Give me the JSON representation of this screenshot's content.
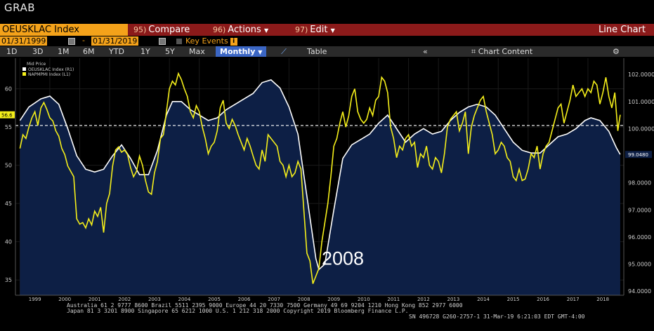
{
  "app": {
    "title": "GRAB"
  },
  "command_bar": {
    "ticker": "OEUSKLAC Index",
    "compare_num": "95)",
    "compare_label": "Compare",
    "actions_num": "96)",
    "actions_label": "Actions",
    "edit_num": "97)",
    "edit_label": "Edit",
    "view_label": "Line Chart"
  },
  "date_range": {
    "start": "01/31/1999",
    "separator": "-",
    "end": "01/31/2019",
    "key_events_label": "Key Events",
    "info_glyph": "i"
  },
  "range_bar": {
    "buttons": [
      "1D",
      "3D",
      "1M",
      "6M",
      "YTD",
      "1Y",
      "5Y",
      "Max"
    ],
    "frequency": "Monthly",
    "table_label": "Table",
    "chart_content_label": "Chart Content"
  },
  "chart_data": {
    "type": "line",
    "legend_title": "Mid Price",
    "legend_position": "top-left",
    "series": [
      {
        "name": "OEUSKLAC Index  (R1)",
        "axis": "right",
        "color": "#ffffff",
        "fill": "#0d1f45",
        "points": [
          [
            1999.0,
            100.3
          ],
          [
            1999.3,
            100.8
          ],
          [
            1999.7,
            101.1
          ],
          [
            2000.0,
            101.2
          ],
          [
            2000.3,
            100.9
          ],
          [
            2000.6,
            100.0
          ],
          [
            2000.9,
            99.0
          ],
          [
            2001.2,
            98.5
          ],
          [
            2001.5,
            98.4
          ],
          [
            2001.8,
            98.5
          ],
          [
            2002.1,
            99.0
          ],
          [
            2002.4,
            99.4
          ],
          [
            2002.7,
            98.9
          ],
          [
            2003.0,
            98.3
          ],
          [
            2003.3,
            98.3
          ],
          [
            2003.6,
            99.2
          ],
          [
            2003.9,
            100.5
          ],
          [
            2004.1,
            101.0
          ],
          [
            2004.4,
            101.0
          ],
          [
            2004.7,
            100.7
          ],
          [
            2005.0,
            100.5
          ],
          [
            2005.3,
            100.3
          ],
          [
            2005.6,
            100.4
          ],
          [
            2005.9,
            100.7
          ],
          [
            2006.2,
            100.9
          ],
          [
            2006.5,
            101.1
          ],
          [
            2006.8,
            101.3
          ],
          [
            2007.1,
            101.7
          ],
          [
            2007.4,
            101.8
          ],
          [
            2007.7,
            101.5
          ],
          [
            2008.0,
            100.8
          ],
          [
            2008.3,
            99.8
          ],
          [
            2008.6,
            97.5
          ],
          [
            2008.9,
            95.2
          ],
          [
            2009.0,
            94.8
          ],
          [
            2009.2,
            95.0
          ],
          [
            2009.5,
            97.0
          ],
          [
            2009.8,
            98.9
          ],
          [
            2010.1,
            99.4
          ],
          [
            2010.4,
            99.6
          ],
          [
            2010.7,
            99.8
          ],
          [
            2011.0,
            100.2
          ],
          [
            2011.3,
            100.5
          ],
          [
            2011.6,
            100.0
          ],
          [
            2011.9,
            99.5
          ],
          [
            2012.2,
            99.8
          ],
          [
            2012.5,
            100.0
          ],
          [
            2012.8,
            99.8
          ],
          [
            2013.1,
            99.9
          ],
          [
            2013.4,
            100.3
          ],
          [
            2013.7,
            100.6
          ],
          [
            2014.0,
            100.8
          ],
          [
            2014.3,
            100.9
          ],
          [
            2014.6,
            100.8
          ],
          [
            2014.9,
            100.5
          ],
          [
            2015.2,
            100.0
          ],
          [
            2015.5,
            99.5
          ],
          [
            2015.8,
            99.2
          ],
          [
            2016.1,
            99.1
          ],
          [
            2016.4,
            99.1
          ],
          [
            2016.7,
            99.4
          ],
          [
            2017.0,
            99.7
          ],
          [
            2017.3,
            99.8
          ],
          [
            2017.6,
            100.0
          ],
          [
            2017.9,
            100.3
          ],
          [
            2018.1,
            100.4
          ],
          [
            2018.4,
            100.3
          ],
          [
            2018.7,
            99.9
          ],
          [
            2018.95,
            99.3
          ],
          [
            2019.08,
            99.048
          ]
        ]
      },
      {
        "name": "NAPMPMI Index  (L1)",
        "axis": "left",
        "color": "#f5ef1a",
        "points": [
          [
            1999.0,
            52.2
          ],
          [
            1999.1,
            54.0
          ],
          [
            1999.2,
            53.5
          ],
          [
            1999.3,
            55.0
          ],
          [
            1999.4,
            56.2
          ],
          [
            1999.5,
            57.0
          ],
          [
            1999.6,
            55.2
          ],
          [
            1999.7,
            57.5
          ],
          [
            1999.8,
            58.2
          ],
          [
            1999.9,
            57.3
          ],
          [
            2000.0,
            56.2
          ],
          [
            2000.1,
            55.8
          ],
          [
            2000.2,
            54.5
          ],
          [
            2000.3,
            53.8
          ],
          [
            2000.4,
            52.2
          ],
          [
            2000.5,
            51.4
          ],
          [
            2000.6,
            49.9
          ],
          [
            2000.7,
            49.2
          ],
          [
            2000.8,
            48.5
          ],
          [
            2000.9,
            43.0
          ],
          [
            2001.0,
            42.3
          ],
          [
            2001.1,
            42.5
          ],
          [
            2001.2,
            41.8
          ],
          [
            2001.3,
            43.0
          ],
          [
            2001.4,
            42.2
          ],
          [
            2001.5,
            44.0
          ],
          [
            2001.6,
            43.3
          ],
          [
            2001.7,
            44.5
          ],
          [
            2001.8,
            41.2
          ],
          [
            2001.9,
            45.0
          ],
          [
            2002.0,
            46.3
          ],
          [
            2002.1,
            49.9
          ],
          [
            2002.2,
            52.0
          ],
          [
            2002.3,
            52.4
          ],
          [
            2002.4,
            51.7
          ],
          [
            2002.5,
            52.0
          ],
          [
            2002.6,
            51.4
          ],
          [
            2002.7,
            49.7
          ],
          [
            2002.8,
            48.5
          ],
          [
            2002.9,
            49.2
          ],
          [
            2003.0,
            51.2
          ],
          [
            2003.1,
            50.0
          ],
          [
            2003.2,
            48.0
          ],
          [
            2003.3,
            46.5
          ],
          [
            2003.4,
            46.2
          ],
          [
            2003.5,
            49.0
          ],
          [
            2003.6,
            50.5
          ],
          [
            2003.7,
            53.5
          ],
          [
            2003.8,
            54.0
          ],
          [
            2003.9,
            57.0
          ],
          [
            2004.0,
            60.0
          ],
          [
            2004.1,
            61.0
          ],
          [
            2004.2,
            60.5
          ],
          [
            2004.3,
            62.0
          ],
          [
            2004.4,
            61.2
          ],
          [
            2004.5,
            60.0
          ],
          [
            2004.6,
            59.0
          ],
          [
            2004.7,
            57.0
          ],
          [
            2004.8,
            56.2
          ],
          [
            2004.9,
            57.8
          ],
          [
            2005.0,
            57.0
          ],
          [
            2005.1,
            55.0
          ],
          [
            2005.2,
            53.5
          ],
          [
            2005.3,
            51.5
          ],
          [
            2005.4,
            52.5
          ],
          [
            2005.5,
            53.0
          ],
          [
            2005.6,
            54.5
          ],
          [
            2005.7,
            57.5
          ],
          [
            2005.8,
            58.5
          ],
          [
            2005.9,
            55.5
          ],
          [
            2006.0,
            54.8
          ],
          [
            2006.1,
            56.0
          ],
          [
            2006.2,
            55.2
          ],
          [
            2006.3,
            54.0
          ],
          [
            2006.4,
            53.0
          ],
          [
            2006.5,
            52.0
          ],
          [
            2006.6,
            53.5
          ],
          [
            2006.7,
            52.5
          ],
          [
            2006.8,
            51.2
          ],
          [
            2006.9,
            50.0
          ],
          [
            2007.0,
            49.5
          ],
          [
            2007.1,
            52.0
          ],
          [
            2007.2,
            50.5
          ],
          [
            2007.3,
            54.0
          ],
          [
            2007.4,
            53.5
          ],
          [
            2007.5,
            53.0
          ],
          [
            2007.6,
            52.5
          ],
          [
            2007.7,
            50.5
          ],
          [
            2007.8,
            50.0
          ],
          [
            2007.9,
            48.5
          ],
          [
            2008.0,
            50.0
          ],
          [
            2008.1,
            48.5
          ],
          [
            2008.2,
            49.0
          ],
          [
            2008.3,
            50.5
          ],
          [
            2008.4,
            49.5
          ],
          [
            2008.5,
            44.0
          ],
          [
            2008.6,
            38.5
          ],
          [
            2008.7,
            37.5
          ],
          [
            2008.8,
            34.5
          ],
          [
            2008.9,
            35.5
          ],
          [
            2009.0,
            36.5
          ],
          [
            2009.1,
            40.0
          ],
          [
            2009.2,
            42.5
          ],
          [
            2009.3,
            45.0
          ],
          [
            2009.4,
            48.5
          ],
          [
            2009.5,
            52.5
          ],
          [
            2009.6,
            53.5
          ],
          [
            2009.7,
            55.5
          ],
          [
            2009.8,
            57.0
          ],
          [
            2009.9,
            55.0
          ],
          [
            2010.0,
            56.5
          ],
          [
            2010.1,
            59.0
          ],
          [
            2010.2,
            60.0
          ],
          [
            2010.3,
            57.0
          ],
          [
            2010.4,
            56.0
          ],
          [
            2010.5,
            55.5
          ],
          [
            2010.6,
            56.0
          ],
          [
            2010.7,
            57.5
          ],
          [
            2010.8,
            56.5
          ],
          [
            2010.9,
            58.5
          ],
          [
            2011.0,
            59.0
          ],
          [
            2011.1,
            61.5
          ],
          [
            2011.2,
            61.0
          ],
          [
            2011.3,
            59.5
          ],
          [
            2011.4,
            55.0
          ],
          [
            2011.5,
            53.5
          ],
          [
            2011.6,
            51.0
          ],
          [
            2011.7,
            52.5
          ],
          [
            2011.8,
            52.0
          ],
          [
            2011.9,
            53.5
          ],
          [
            2012.0,
            54.0
          ],
          [
            2012.1,
            52.5
          ],
          [
            2012.2,
            53.0
          ],
          [
            2012.3,
            49.7
          ],
          [
            2012.4,
            51.5
          ],
          [
            2012.5,
            51.0
          ],
          [
            2012.6,
            52.5
          ],
          [
            2012.7,
            50.0
          ],
          [
            2012.8,
            49.5
          ],
          [
            2012.9,
            51.0
          ],
          [
            2013.0,
            50.5
          ],
          [
            2013.1,
            49.0
          ],
          [
            2013.2,
            51.5
          ],
          [
            2013.3,
            55.0
          ],
          [
            2013.4,
            56.0
          ],
          [
            2013.5,
            56.5
          ],
          [
            2013.6,
            57.0
          ],
          [
            2013.7,
            54.5
          ],
          [
            2013.8,
            55.5
          ],
          [
            2013.9,
            57.0
          ],
          [
            2014.0,
            51.5
          ],
          [
            2014.1,
            55.0
          ],
          [
            2014.2,
            56.5
          ],
          [
            2014.3,
            57.5
          ],
          [
            2014.4,
            58.5
          ],
          [
            2014.5,
            59.0
          ],
          [
            2014.6,
            57.0
          ],
          [
            2014.7,
            55.5
          ],
          [
            2014.8,
            54.0
          ],
          [
            2014.9,
            51.5
          ],
          [
            2015.0,
            52.0
          ],
          [
            2015.1,
            53.0
          ],
          [
            2015.2,
            52.5
          ],
          [
            2015.3,
            51.0
          ],
          [
            2015.4,
            50.5
          ],
          [
            2015.5,
            48.5
          ],
          [
            2015.6,
            48.0
          ],
          [
            2015.7,
            49.5
          ],
          [
            2015.8,
            48.0
          ],
          [
            2015.9,
            48.2
          ],
          [
            2016.0,
            49.5
          ],
          [
            2016.1,
            51.5
          ],
          [
            2016.2,
            51.0
          ],
          [
            2016.3,
            52.5
          ],
          [
            2016.4,
            49.5
          ],
          [
            2016.5,
            51.5
          ],
          [
            2016.6,
            52.5
          ],
          [
            2016.7,
            53.0
          ],
          [
            2016.8,
            54.5
          ],
          [
            2016.9,
            56.0
          ],
          [
            2017.0,
            57.5
          ],
          [
            2017.1,
            58.0
          ],
          [
            2017.2,
            55.5
          ],
          [
            2017.3,
            57.0
          ],
          [
            2017.4,
            58.5
          ],
          [
            2017.5,
            60.5
          ],
          [
            2017.6,
            59.0
          ],
          [
            2017.7,
            59.5
          ],
          [
            2017.8,
            60.0
          ],
          [
            2017.9,
            59.0
          ],
          [
            2018.0,
            60.0
          ],
          [
            2018.1,
            59.5
          ],
          [
            2018.2,
            61.0
          ],
          [
            2018.3,
            60.5
          ],
          [
            2018.4,
            58.0
          ],
          [
            2018.5,
            59.5
          ],
          [
            2018.6,
            61.5
          ],
          [
            2018.7,
            59.0
          ],
          [
            2018.8,
            57.5
          ],
          [
            2018.9,
            59.5
          ],
          [
            2019.0,
            54.5
          ],
          [
            2019.08,
            56.6
          ]
        ]
      }
    ],
    "reference_line": {
      "value": 55.2,
      "style": "dashed",
      "color": "#ffffff"
    },
    "annotation": {
      "text": "2008",
      "x": 2009.8,
      "y": 37.0
    },
    "left_axis": {
      "ylim": [
        33,
        64
      ],
      "ticks": [
        "35",
        "40",
        "45",
        "50",
        "55",
        "60"
      ],
      "last_value_label": "56.6"
    },
    "right_axis": {
      "ylim": [
        93.85,
        102.6
      ],
      "ticks": [
        "94.0000",
        "95.0000",
        "96.0000",
        "97.0000",
        "98.0000",
        "99.0000",
        "100.0000",
        "101.0000",
        "102.0000"
      ],
      "last_value_label": "99.0480",
      "last_value": 99.048
    },
    "x_axis": {
      "xlim": [
        1998.85,
        2019.2
      ],
      "ticks": [
        "1999",
        "2000",
        "2001",
        "2002",
        "2003",
        "2004",
        "2005",
        "2006",
        "2007",
        "2008",
        "2009",
        "2010",
        "2011",
        "2012",
        "2013",
        "2014",
        "2015",
        "2016",
        "2017",
        "2018"
      ]
    },
    "grid": true
  },
  "footer": {
    "line1": "Australia 61 2 9777 8600 Brazil 5511 2395 9000 Europe 44 20 7330 7500 Germany 49 69 9204 1210 Hong Kong 852 2977 6000",
    "line2": "Japan 81 3 3201 8900         Singapore 65 6212 1000         U.S. 1 212 318 2000                Copyright 2019 Bloomberg Finance L.P.",
    "line3": "SN 496728 G260-2757-1 31-Mar-19  6:21:03 EDT  GMT-4:00"
  },
  "colors": {
    "accent": "#f4a21a",
    "command_bar": "#8b1a1a",
    "active_button": "#3b66c4"
  }
}
